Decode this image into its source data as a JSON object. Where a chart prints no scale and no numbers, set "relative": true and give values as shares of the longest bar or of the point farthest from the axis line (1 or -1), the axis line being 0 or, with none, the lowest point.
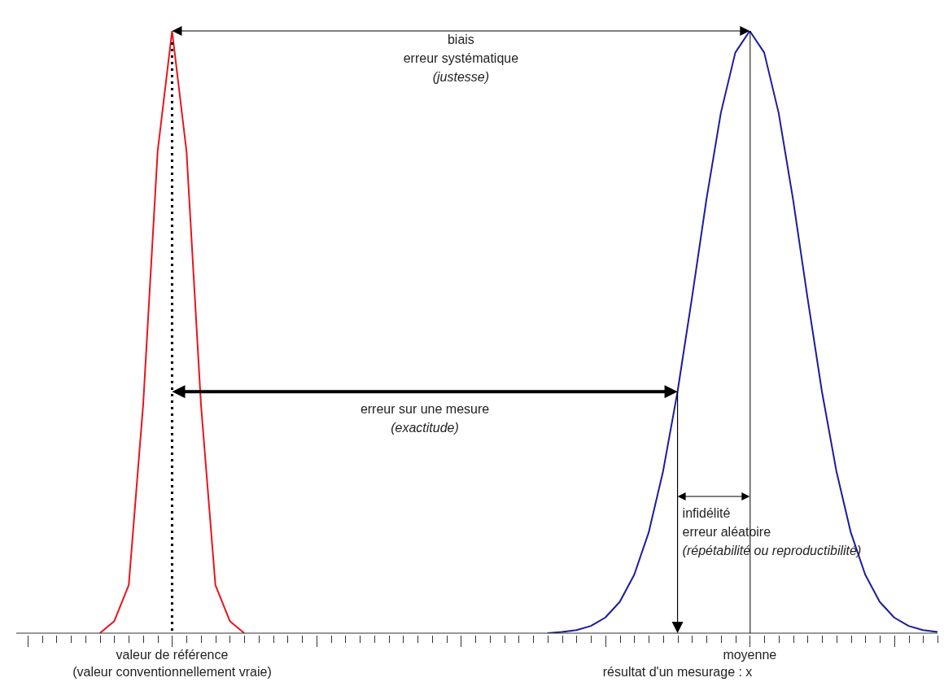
{
  "chart_data": {
    "type": "line",
    "relative": true,
    "categories": [
      null,
      null,
      null,
      null,
      null,
      null,
      null,
      null,
      null,
      null,
      "valeur de référence\n(valeur conventionnellement vraie)",
      null,
      null,
      null,
      null,
      null,
      null,
      null,
      null,
      null,
      null,
      null,
      null,
      null,
      null,
      null,
      null,
      null,
      null,
      null,
      null,
      null,
      null,
      null,
      null,
      null,
      null,
      null,
      null,
      null,
      null,
      null,
      null,
      null,
      null,
      "résultat d'un mesurage : x",
      null,
      null,
      null,
      null,
      "moyenne",
      null,
      null,
      null,
      null,
      null,
      null,
      null,
      null,
      null,
      null,
      null,
      null,
      null
    ],
    "series": [
      {
        "color": "#e8141c",
        "values": [
          null,
          null,
          null,
          null,
          null,
          0,
          0.02,
          0.08,
          0.38,
          0.8,
          1,
          0.8,
          0.38,
          0.08,
          0.02,
          0,
          null,
          null,
          null,
          null,
          null,
          null,
          null,
          null,
          null,
          null,
          null,
          null,
          null,
          null,
          null,
          null,
          null,
          null,
          null,
          null,
          null,
          null,
          null,
          null,
          null,
          null,
          null,
          null,
          null,
          null,
          null,
          null,
          null,
          null,
          null,
          null,
          null,
          null,
          null,
          null,
          null,
          null,
          null,
          null,
          null,
          null,
          null,
          null
        ]
      },
      {
        "color": "#1c1c9c",
        "values": [
          null,
          null,
          null,
          null,
          null,
          null,
          null,
          null,
          null,
          null,
          null,
          null,
          null,
          null,
          null,
          null,
          null,
          null,
          null,
          null,
          null,
          null,
          null,
          null,
          null,
          null,
          null,
          null,
          null,
          null,
          null,
          null,
          null,
          null,
          null,
          null,
          0,
          0.002,
          0.005,
          0.012,
          0.026,
          0.052,
          0.097,
          0.167,
          0.269,
          0.401,
          0.557,
          0.72,
          0.864,
          0.964,
          1,
          0.964,
          0.864,
          0.72,
          0.557,
          0.401,
          0.269,
          0.167,
          0.097,
          0.052,
          0.026,
          0.012,
          0.005,
          0.002
        ]
      }
    ],
    "annotations": [
      "biais\nerreur systématique\n(justesse)",
      "erreur sur une mesure\n(exactitude)",
      "infidélité\nerreur aléatoire\n(répétabilité ou reproductibilité)"
    ]
  }
}
